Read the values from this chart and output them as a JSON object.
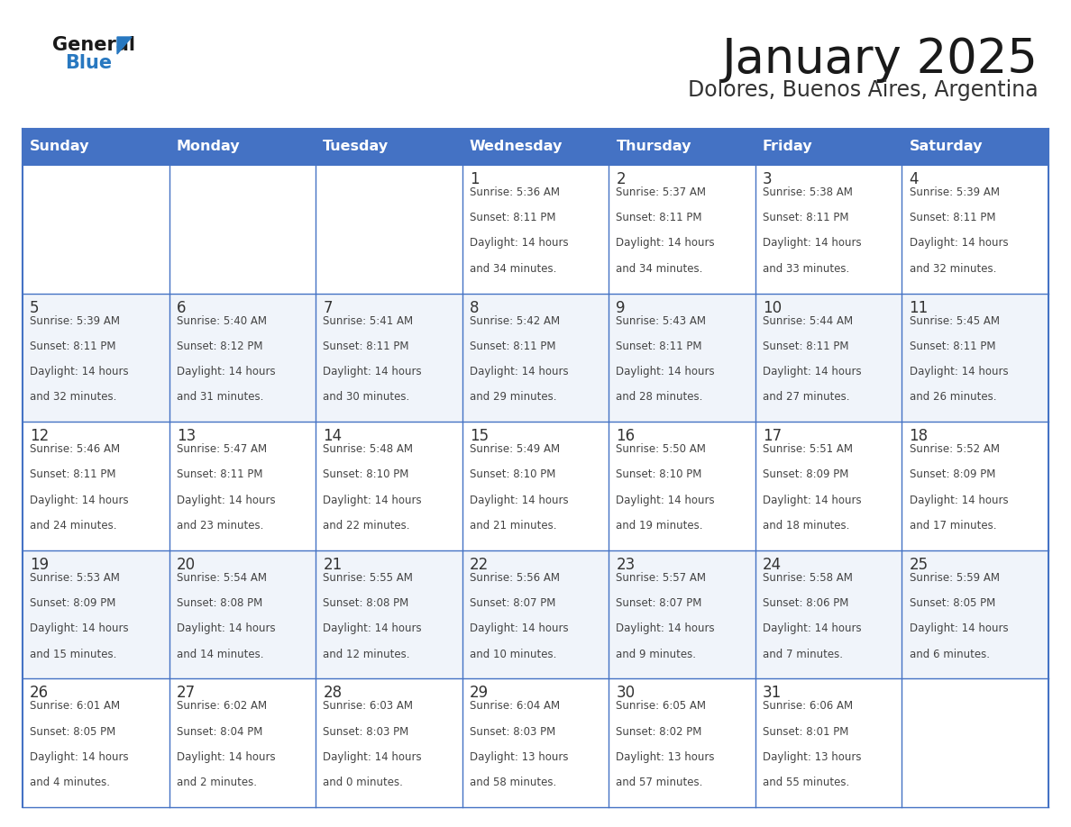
{
  "title": "January 2025",
  "subtitle": "Dolores, Buenos Aires, Argentina",
  "days_of_week": [
    "Sunday",
    "Monday",
    "Tuesday",
    "Wednesday",
    "Thursday",
    "Friday",
    "Saturday"
  ],
  "header_bg": "#4472C4",
  "header_text": "#FFFFFF",
  "odd_row_bg": "#FFFFFF",
  "even_row_bg": "#F0F4FA",
  "day_num_color": "#333333",
  "cell_text_color": "#444444",
  "border_color": "#4472C4",
  "logo_black": "#1a1a1a",
  "logo_blue": "#2878C0",
  "calendar_data": [
    {
      "day": 1,
      "col": 3,
      "row": 0,
      "sunrise": "5:36 AM",
      "sunset": "8:11 PM",
      "dl_hours": "14",
      "dl_min": "34"
    },
    {
      "day": 2,
      "col": 4,
      "row": 0,
      "sunrise": "5:37 AM",
      "sunset": "8:11 PM",
      "dl_hours": "14",
      "dl_min": "34"
    },
    {
      "day": 3,
      "col": 5,
      "row": 0,
      "sunrise": "5:38 AM",
      "sunset": "8:11 PM",
      "dl_hours": "14",
      "dl_min": "33"
    },
    {
      "day": 4,
      "col": 6,
      "row": 0,
      "sunrise": "5:39 AM",
      "sunset": "8:11 PM",
      "dl_hours": "14",
      "dl_min": "32"
    },
    {
      "day": 5,
      "col": 0,
      "row": 1,
      "sunrise": "5:39 AM",
      "sunset": "8:11 PM",
      "dl_hours": "14",
      "dl_min": "32"
    },
    {
      "day": 6,
      "col": 1,
      "row": 1,
      "sunrise": "5:40 AM",
      "sunset": "8:12 PM",
      "dl_hours": "14",
      "dl_min": "31"
    },
    {
      "day": 7,
      "col": 2,
      "row": 1,
      "sunrise": "5:41 AM",
      "sunset": "8:11 PM",
      "dl_hours": "14",
      "dl_min": "30"
    },
    {
      "day": 8,
      "col": 3,
      "row": 1,
      "sunrise": "5:42 AM",
      "sunset": "8:11 PM",
      "dl_hours": "14",
      "dl_min": "29"
    },
    {
      "day": 9,
      "col": 4,
      "row": 1,
      "sunrise": "5:43 AM",
      "sunset": "8:11 PM",
      "dl_hours": "14",
      "dl_min": "28"
    },
    {
      "day": 10,
      "col": 5,
      "row": 1,
      "sunrise": "5:44 AM",
      "sunset": "8:11 PM",
      "dl_hours": "14",
      "dl_min": "27"
    },
    {
      "day": 11,
      "col": 6,
      "row": 1,
      "sunrise": "5:45 AM",
      "sunset": "8:11 PM",
      "dl_hours": "14",
      "dl_min": "26"
    },
    {
      "day": 12,
      "col": 0,
      "row": 2,
      "sunrise": "5:46 AM",
      "sunset": "8:11 PM",
      "dl_hours": "14",
      "dl_min": "24"
    },
    {
      "day": 13,
      "col": 1,
      "row": 2,
      "sunrise": "5:47 AM",
      "sunset": "8:11 PM",
      "dl_hours": "14",
      "dl_min": "23"
    },
    {
      "day": 14,
      "col": 2,
      "row": 2,
      "sunrise": "5:48 AM",
      "sunset": "8:10 PM",
      "dl_hours": "14",
      "dl_min": "22"
    },
    {
      "day": 15,
      "col": 3,
      "row": 2,
      "sunrise": "5:49 AM",
      "sunset": "8:10 PM",
      "dl_hours": "14",
      "dl_min": "21"
    },
    {
      "day": 16,
      "col": 4,
      "row": 2,
      "sunrise": "5:50 AM",
      "sunset": "8:10 PM",
      "dl_hours": "14",
      "dl_min": "19"
    },
    {
      "day": 17,
      "col": 5,
      "row": 2,
      "sunrise": "5:51 AM",
      "sunset": "8:09 PM",
      "dl_hours": "14",
      "dl_min": "18"
    },
    {
      "day": 18,
      "col": 6,
      "row": 2,
      "sunrise": "5:52 AM",
      "sunset": "8:09 PM",
      "dl_hours": "14",
      "dl_min": "17"
    },
    {
      "day": 19,
      "col": 0,
      "row": 3,
      "sunrise": "5:53 AM",
      "sunset": "8:09 PM",
      "dl_hours": "14",
      "dl_min": "15"
    },
    {
      "day": 20,
      "col": 1,
      "row": 3,
      "sunrise": "5:54 AM",
      "sunset": "8:08 PM",
      "dl_hours": "14",
      "dl_min": "14"
    },
    {
      "day": 21,
      "col": 2,
      "row": 3,
      "sunrise": "5:55 AM",
      "sunset": "8:08 PM",
      "dl_hours": "14",
      "dl_min": "12"
    },
    {
      "day": 22,
      "col": 3,
      "row": 3,
      "sunrise": "5:56 AM",
      "sunset": "8:07 PM",
      "dl_hours": "14",
      "dl_min": "10"
    },
    {
      "day": 23,
      "col": 4,
      "row": 3,
      "sunrise": "5:57 AM",
      "sunset": "8:07 PM",
      "dl_hours": "14",
      "dl_min": "9"
    },
    {
      "day": 24,
      "col": 5,
      "row": 3,
      "sunrise": "5:58 AM",
      "sunset": "8:06 PM",
      "dl_hours": "14",
      "dl_min": "7"
    },
    {
      "day": 25,
      "col": 6,
      "row": 3,
      "sunrise": "5:59 AM",
      "sunset": "8:05 PM",
      "dl_hours": "14",
      "dl_min": "6"
    },
    {
      "day": 26,
      "col": 0,
      "row": 4,
      "sunrise": "6:01 AM",
      "sunset": "8:05 PM",
      "dl_hours": "14",
      "dl_min": "4"
    },
    {
      "day": 27,
      "col": 1,
      "row": 4,
      "sunrise": "6:02 AM",
      "sunset": "8:04 PM",
      "dl_hours": "14",
      "dl_min": "2"
    },
    {
      "day": 28,
      "col": 2,
      "row": 4,
      "sunrise": "6:03 AM",
      "sunset": "8:03 PM",
      "dl_hours": "14",
      "dl_min": "0"
    },
    {
      "day": 29,
      "col": 3,
      "row": 4,
      "sunrise": "6:04 AM",
      "sunset": "8:03 PM",
      "dl_hours": "13",
      "dl_min": "58"
    },
    {
      "day": 30,
      "col": 4,
      "row": 4,
      "sunrise": "6:05 AM",
      "sunset": "8:02 PM",
      "dl_hours": "13",
      "dl_min": "57"
    },
    {
      "day": 31,
      "col": 5,
      "row": 4,
      "sunrise": "6:06 AM",
      "sunset": "8:01 PM",
      "dl_hours": "13",
      "dl_min": "55"
    }
  ]
}
